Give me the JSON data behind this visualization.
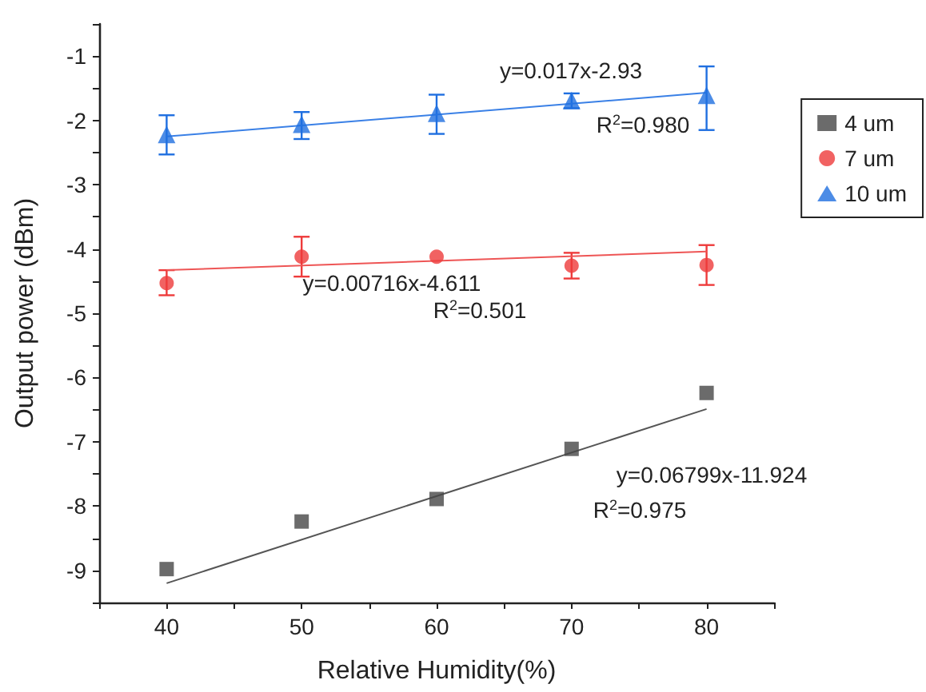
{
  "chart_data": {
    "type": "scatter",
    "xlabel": "Relative Humidity(%)",
    "ylabel": "Output power (dBm)",
    "xlim": [
      35,
      85
    ],
    "xticks": [
      {
        "value": 35,
        "label": null
      },
      40,
      {
        "value": 45,
        "label": null
      },
      50,
      {
        "value": 55,
        "label": null
      },
      60,
      {
        "value": 65,
        "label": null
      },
      70,
      {
        "value": 75,
        "label": null
      },
      80,
      {
        "value": 85,
        "label": null
      }
    ],
    "ylim": [
      -9.5,
      -0.5
    ],
    "yticks": [
      {
        "value": -9.5,
        "label": null
      },
      -9,
      {
        "value": -8.5,
        "label": null
      },
      -8,
      {
        "value": -7.5,
        "label": null
      },
      -7,
      {
        "value": -6.5,
        "label": null
      },
      -6,
      {
        "value": -5.5,
        "label": null
      },
      -5,
      {
        "value": -4.5,
        "label": null
      },
      -4,
      {
        "value": -3.5,
        "label": null
      },
      -3,
      {
        "value": -2.5,
        "label": null
      },
      -2,
      {
        "value": -1.5,
        "label": null
      },
      -1,
      {
        "value": -0.5,
        "label": null
      }
    ],
    "grid": false,
    "legend": "right",
    "series": [
      {
        "name": "4 um",
        "color": "#464646",
        "marker": "square",
        "x": [
          40,
          50,
          60,
          70,
          80
        ],
        "values": [
          -8.98,
          -8.24,
          -7.89,
          -7.11,
          -6.24
        ]
      },
      {
        "name": "7 um",
        "color": "#ee3b3b",
        "marker": "circle",
        "x": [
          40,
          50,
          60,
          70,
          80
        ],
        "values": [
          -4.53,
          -4.12,
          -4.12,
          -4.26,
          -4.25
        ],
        "errors": [
          [
            -4.72,
            -4.33
          ],
          [
            -4.43,
            -3.81
          ],
          null,
          [
            -4.46,
            -4.06
          ],
          [
            -4.56,
            -3.94
          ]
        ]
      },
      {
        "name": "10 um",
        "color": "#1f6fe0",
        "marker": "triangle",
        "x": [
          40,
          50,
          60,
          70,
          80
        ],
        "values": [
          -2.22,
          -2.06,
          -1.89,
          -1.69,
          -1.61
        ],
        "errors": [
          [
            -2.53,
            -1.92
          ],
          [
            -2.29,
            -1.87
          ],
          [
            -2.21,
            -1.6
          ],
          [
            -1.81,
            -1.58
          ],
          [
            -2.15,
            -1.16
          ]
        ]
      },
      {
        "type": "line",
        "color": "#555555",
        "marker": "none",
        "x": [
          40,
          80
        ],
        "values": [
          -9.2,
          -6.49
        ]
      },
      {
        "type": "line",
        "color": "#ee5555",
        "marker": "none",
        "x": [
          40,
          80
        ],
        "values": [
          -4.33,
          -4.04
        ]
      },
      {
        "type": "line",
        "color": "#3a80e6",
        "marker": "none",
        "x": [
          40,
          80
        ],
        "values": [
          -2.25,
          -1.57
        ]
      }
    ],
    "annotations": [
      "y=0.017x-2.93",
      "R$^{2}$=0.980",
      "y=0.00716x-4.611",
      "R$^{2}$=0.501",
      "y=0.06799x-11.924",
      "R$^{2}$=0.975"
    ]
  }
}
